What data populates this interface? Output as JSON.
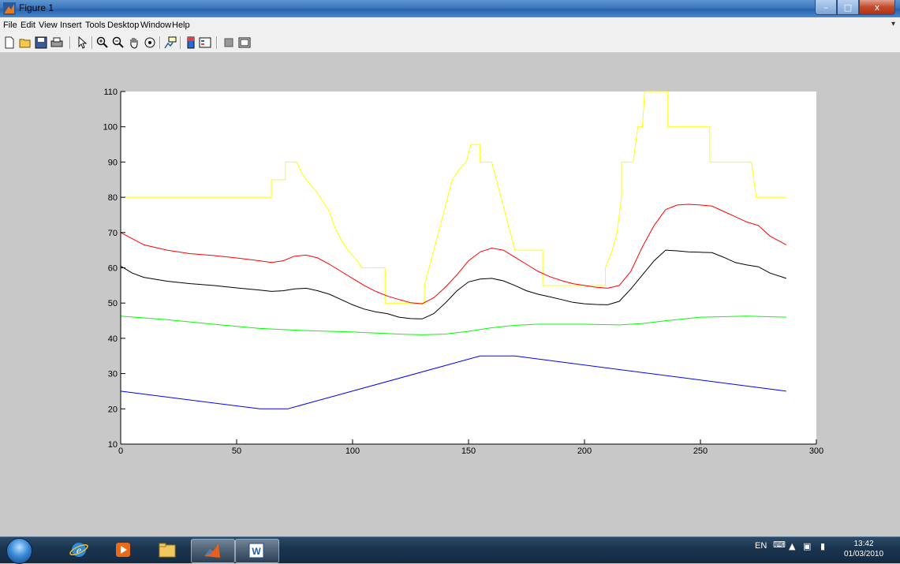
{
  "window": {
    "title": "Figure 1",
    "min_glyph": "–",
    "max_glyph": "□",
    "close_glyph": "x"
  },
  "menu": [
    "File",
    "Edit",
    "View",
    "Insert",
    "Tools",
    "Desktop",
    "Window",
    "Help"
  ],
  "toolbar_icons": [
    "new-figure-icon",
    "open-file-icon",
    "save-icon",
    "print-icon",
    "edit-plot-arrow-icon",
    "zoom-in-icon",
    "zoom-out-icon",
    "pan-hand-icon",
    "rotate-3d-icon",
    "data-cursor-icon",
    "colorbar-icon",
    "legend-icon",
    "hide-plot-tools-icon",
    "show-plot-tools-icon"
  ],
  "taskbar": {
    "apps": [
      "internet-explorer-icon",
      "media-center-icon",
      "file-manager-icon",
      "matlab-icon",
      "word-icon"
    ],
    "language": "EN",
    "time": "13:42",
    "date": "01/03/2010"
  },
  "chart_data": {
    "type": "line",
    "title": "",
    "xlabel": "",
    "ylabel": "",
    "xlim": [
      0,
      300
    ],
    "ylim": [
      10,
      110
    ],
    "xticks": [
      0,
      50,
      100,
      150,
      200,
      250,
      300
    ],
    "yticks": [
      10,
      20,
      30,
      40,
      50,
      60,
      70,
      80,
      90,
      100,
      110
    ],
    "grid": false,
    "series": [
      {
        "color": "#ffff00",
        "step": true,
        "points": [
          [
            0,
            80
          ],
          [
            65,
            80
          ],
          [
            65,
            85
          ],
          [
            71,
            85
          ],
          [
            71,
            90
          ],
          [
            76,
            90
          ],
          [
            78,
            87
          ],
          [
            80,
            85
          ],
          [
            84,
            82
          ],
          [
            88,
            78
          ],
          [
            90,
            76
          ],
          [
            92,
            72
          ],
          [
            95,
            68
          ],
          [
            98,
            65
          ],
          [
            102,
            62
          ],
          [
            104,
            60
          ],
          [
            114,
            60
          ],
          [
            114,
            50
          ],
          [
            131,
            50
          ],
          [
            131,
            55
          ],
          [
            133,
            60
          ],
          [
            135,
            65
          ],
          [
            137,
            70
          ],
          [
            139,
            75
          ],
          [
            141,
            80
          ],
          [
            143,
            85
          ],
          [
            146,
            88
          ],
          [
            149,
            90
          ],
          [
            151,
            95
          ],
          [
            155,
            95
          ],
          [
            155,
            90
          ],
          [
            160,
            90
          ],
          [
            162,
            85
          ],
          [
            164,
            80
          ],
          [
            166,
            75
          ],
          [
            168,
            70
          ],
          [
            170,
            65
          ],
          [
            182,
            65
          ],
          [
            182,
            55
          ],
          [
            209,
            55
          ],
          [
            209,
            60
          ],
          [
            212,
            65
          ],
          [
            214,
            70
          ],
          [
            216,
            80
          ],
          [
            216,
            90
          ],
          [
            221,
            90
          ],
          [
            222,
            95
          ],
          [
            223,
            100
          ],
          [
            225,
            100
          ],
          [
            226,
            110
          ],
          [
            236,
            110
          ],
          [
            236,
            100
          ],
          [
            254,
            100
          ],
          [
            254,
            90
          ],
          [
            272,
            90
          ],
          [
            274,
            80
          ],
          [
            287,
            80
          ]
        ]
      },
      {
        "color": "#ff0000",
        "points": [
          [
            0,
            70
          ],
          [
            10,
            66.5
          ],
          [
            20,
            65
          ],
          [
            30,
            64
          ],
          [
            40,
            63.5
          ],
          [
            50,
            62.8
          ],
          [
            60,
            62
          ],
          [
            65,
            61.5
          ],
          [
            70,
            62
          ],
          [
            75,
            63.3
          ],
          [
            80,
            63.6
          ],
          [
            85,
            62.8
          ],
          [
            90,
            61
          ],
          [
            95,
            59
          ],
          [
            100,
            57
          ],
          [
            105,
            55
          ],
          [
            110,
            53.3
          ],
          [
            115,
            52
          ],
          [
            120,
            51
          ],
          [
            125,
            50.1
          ],
          [
            130,
            49.8
          ],
          [
            135,
            51.5
          ],
          [
            140,
            54.5
          ],
          [
            145,
            58
          ],
          [
            150,
            62
          ],
          [
            155,
            64.5
          ],
          [
            160,
            65.6
          ],
          [
            165,
            65
          ],
          [
            170,
            63
          ],
          [
            175,
            61
          ],
          [
            180,
            59
          ],
          [
            185,
            57.5
          ],
          [
            190,
            56.4
          ],
          [
            195,
            55.5
          ],
          [
            200,
            55
          ],
          [
            205,
            54.5
          ],
          [
            210,
            54.2
          ],
          [
            215,
            55
          ],
          [
            220,
            59
          ],
          [
            225,
            66
          ],
          [
            230,
            72
          ],
          [
            235,
            76.5
          ],
          [
            240,
            77.8
          ],
          [
            245,
            78
          ],
          [
            250,
            77.8
          ],
          [
            255,
            77.5
          ],
          [
            260,
            76
          ],
          [
            265,
            74.5
          ],
          [
            270,
            73
          ],
          [
            275,
            72
          ],
          [
            280,
            69
          ],
          [
            287,
            66.5
          ]
        ]
      },
      {
        "color": "#000000",
        "points": [
          [
            0,
            60.5
          ],
          [
            5,
            58.5
          ],
          [
            10,
            57.3
          ],
          [
            20,
            56.2
          ],
          [
            30,
            55.5
          ],
          [
            40,
            55
          ],
          [
            50,
            54.3
          ],
          [
            60,
            53.7
          ],
          [
            65,
            53.3
          ],
          [
            70,
            53.5
          ],
          [
            75,
            54
          ],
          [
            80,
            54.2
          ],
          [
            85,
            53.5
          ],
          [
            90,
            52.5
          ],
          [
            95,
            51
          ],
          [
            100,
            49.5
          ],
          [
            105,
            48.3
          ],
          [
            110,
            47.5
          ],
          [
            115,
            47
          ],
          [
            120,
            46
          ],
          [
            125,
            45.6
          ],
          [
            130,
            45.5
          ],
          [
            135,
            47
          ],
          [
            140,
            50
          ],
          [
            145,
            53.5
          ],
          [
            150,
            56
          ],
          [
            155,
            56.8
          ],
          [
            160,
            57
          ],
          [
            165,
            56.3
          ],
          [
            170,
            55
          ],
          [
            175,
            53.5
          ],
          [
            180,
            52.5
          ],
          [
            185,
            51.8
          ],
          [
            190,
            51
          ],
          [
            195,
            50.2
          ],
          [
            200,
            49.8
          ],
          [
            205,
            49.6
          ],
          [
            210,
            49.5
          ],
          [
            215,
            50.5
          ],
          [
            220,
            54
          ],
          [
            225,
            58
          ],
          [
            230,
            62
          ],
          [
            235,
            65
          ],
          [
            240,
            64.8
          ],
          [
            245,
            64.5
          ],
          [
            250,
            64.4
          ],
          [
            255,
            64.3
          ],
          [
            260,
            63
          ],
          [
            265,
            61.5
          ],
          [
            270,
            60.8
          ],
          [
            275,
            60.3
          ],
          [
            280,
            58.5
          ],
          [
            287,
            57
          ]
        ]
      },
      {
        "color": "#00ff00",
        "points": [
          [
            0,
            46.3
          ],
          [
            20,
            45.3
          ],
          [
            40,
            44
          ],
          [
            60,
            42.8
          ],
          [
            80,
            42.2
          ],
          [
            100,
            41.8
          ],
          [
            120,
            41.2
          ],
          [
            130,
            41
          ],
          [
            140,
            41.2
          ],
          [
            150,
            42
          ],
          [
            160,
            43
          ],
          [
            170,
            43.7
          ],
          [
            180,
            44
          ],
          [
            190,
            44
          ],
          [
            200,
            44
          ],
          [
            215,
            43.8
          ],
          [
            225,
            44.2
          ],
          [
            235,
            45
          ],
          [
            250,
            46
          ],
          [
            270,
            46.3
          ],
          [
            287,
            46
          ]
        ]
      },
      {
        "color": "#0000ff",
        "points": [
          [
            0,
            25
          ],
          [
            60,
            20
          ],
          [
            72,
            20
          ],
          [
            155,
            35
          ],
          [
            170,
            35
          ],
          [
            287,
            25
          ]
        ]
      }
    ]
  }
}
